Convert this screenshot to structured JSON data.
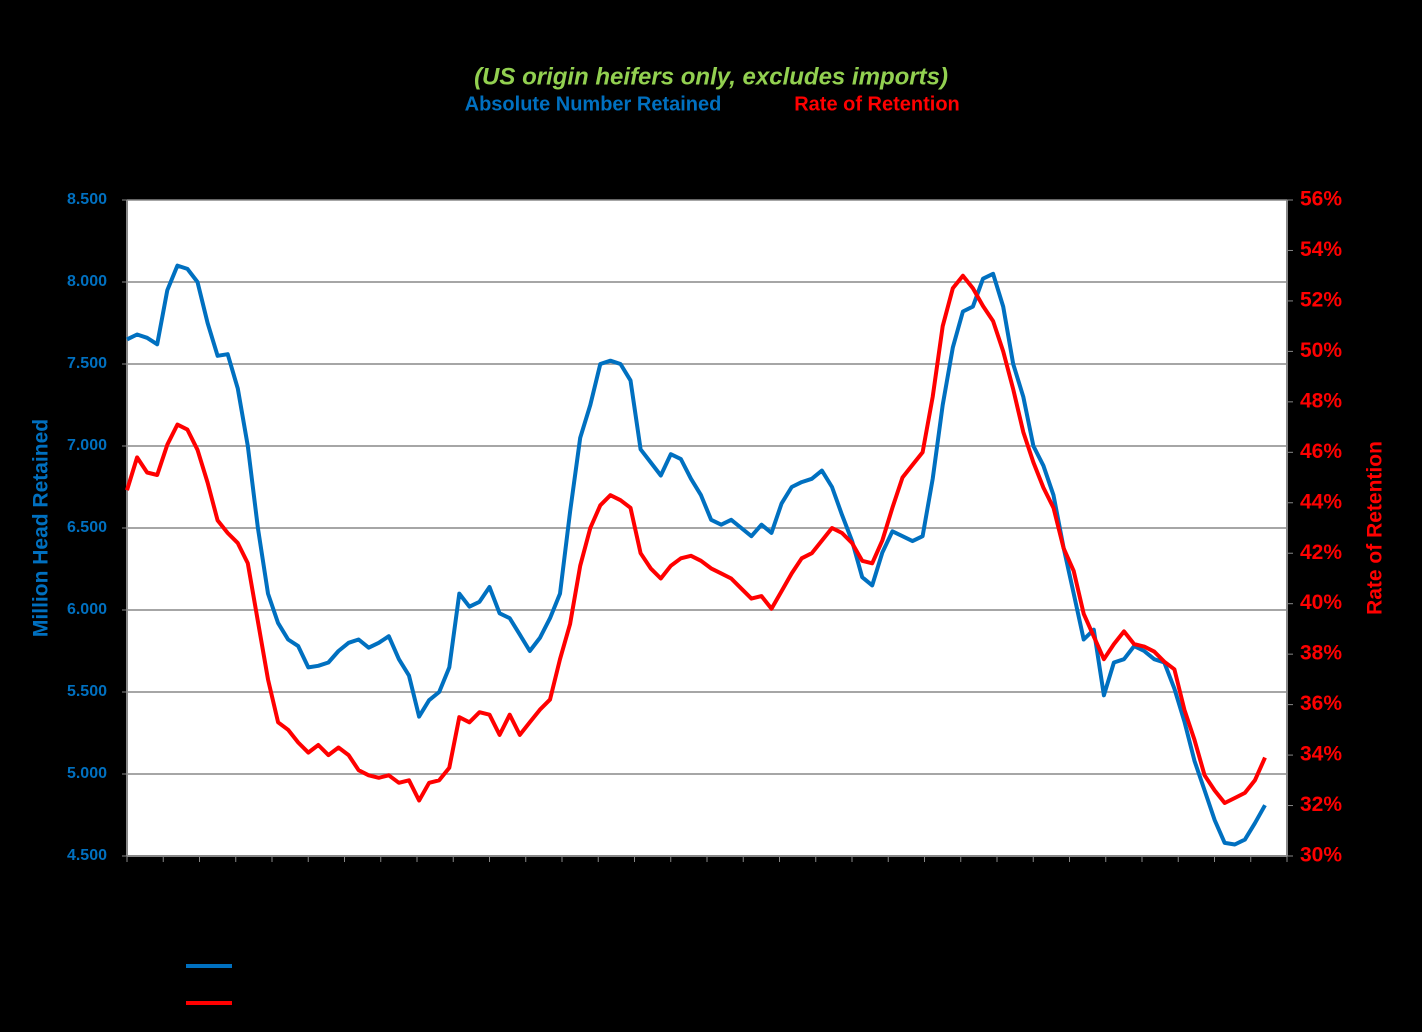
{
  "chart_data": {
    "type": "line",
    "title": "(US origin heifers only, excludes imports)",
    "ylabel": "Million Head Retained",
    "y2label": "Rate of Retention",
    "categories": [
      null,
      null,
      null,
      null,
      null,
      null,
      null,
      null,
      null,
      null,
      null,
      null,
      null,
      null,
      null,
      null,
      null,
      null,
      null,
      null,
      null,
      null,
      null,
      null,
      null,
      null,
      null,
      null,
      null,
      null,
      null,
      null,
      null,
      null,
      null,
      null,
      null,
      null,
      null,
      null,
      null,
      null,
      null,
      null,
      null,
      null,
      null,
      null,
      null,
      null,
      null,
      null,
      null,
      null,
      null,
      null,
      null,
      null,
      null,
      null,
      null,
      null,
      null,
      null,
      null,
      null,
      null,
      null,
      null,
      null,
      null,
      null,
      null,
      null,
      null,
      null,
      null,
      null,
      null,
      null,
      null,
      null,
      null,
      null,
      null,
      null,
      null,
      null,
      null,
      null,
      null,
      null,
      null,
      null,
      null,
      null,
      null,
      null,
      null,
      null,
      null,
      null,
      null,
      null,
      null,
      null,
      null,
      null,
      null,
      null,
      null,
      null,
      null,
      null
    ],
    "series": [
      {
        "name": "Absolute Number Retained",
        "color": "#0070c0",
        "axis": "y",
        "values": [
          7.65,
          7.68,
          7.66,
          7.62,
          7.95,
          8.1,
          8.08,
          8.0,
          7.75,
          7.55,
          7.56,
          7.35,
          7.0,
          6.5,
          6.1,
          5.92,
          5.82,
          5.78,
          5.65,
          5.66,
          5.68,
          5.75,
          5.8,
          5.82,
          5.77,
          5.8,
          5.84,
          5.7,
          5.6,
          5.35,
          5.45,
          5.5,
          5.65,
          6.1,
          6.02,
          6.05,
          6.14,
          5.98,
          5.95,
          5.85,
          5.75,
          5.83,
          5.95,
          6.1,
          6.6,
          7.05,
          7.25,
          7.5,
          7.52,
          7.5,
          7.4,
          6.98,
          6.9,
          6.82,
          6.95,
          6.92,
          6.8,
          6.7,
          6.55,
          6.52,
          6.55,
          6.5,
          6.45,
          6.52,
          6.47,
          6.65,
          6.75,
          6.78,
          6.8,
          6.85,
          6.75,
          6.58,
          6.42,
          6.2,
          6.15,
          6.35,
          6.48,
          6.45,
          6.42,
          6.45,
          6.8,
          7.25,
          7.6,
          7.82,
          7.85,
          8.02,
          8.05,
          7.85,
          7.5,
          7.3,
          7.0,
          6.88,
          6.7,
          6.38,
          6.1,
          5.82,
          5.88,
          5.48,
          5.68,
          5.7,
          5.78,
          5.75,
          5.7,
          5.68,
          5.52,
          5.32,
          5.08,
          4.9,
          4.72,
          4.58,
          4.57,
          4.6,
          4.7,
          4.81
        ]
      },
      {
        "name": "Rate of Retention",
        "color": "#ff0000",
        "axis": "y2",
        "values": [
          44.5,
          45.8,
          45.2,
          45.1,
          46.3,
          47.1,
          46.9,
          46.1,
          44.8,
          43.3,
          42.8,
          42.4,
          41.6,
          39.3,
          37.0,
          35.3,
          35.0,
          34.5,
          34.1,
          34.4,
          34.0,
          34.3,
          34.0,
          33.4,
          33.2,
          33.1,
          33.2,
          32.9,
          33.0,
          32.2,
          32.9,
          33.0,
          33.5,
          35.5,
          35.3,
          35.7,
          35.6,
          34.8,
          35.6,
          34.8,
          35.3,
          35.8,
          36.2,
          37.8,
          39.2,
          41.5,
          43.0,
          43.9,
          44.3,
          44.1,
          43.8,
          42.0,
          41.4,
          41.0,
          41.5,
          41.8,
          41.9,
          41.7,
          41.4,
          41.2,
          41.0,
          40.6,
          40.2,
          40.3,
          39.8,
          40.5,
          41.2,
          41.8,
          42.0,
          42.5,
          43.0,
          42.8,
          42.4,
          41.7,
          41.6,
          42.5,
          43.8,
          45.0,
          45.5,
          46.0,
          48.2,
          51.0,
          52.5,
          53.0,
          52.5,
          51.8,
          51.2,
          50.0,
          48.5,
          46.8,
          45.6,
          44.6,
          43.8,
          42.2,
          41.3,
          39.6,
          38.7,
          37.8,
          38.4,
          38.9,
          38.4,
          38.3,
          38.1,
          37.7,
          37.4,
          35.8,
          34.6,
          33.2,
          32.6,
          32.1,
          32.3,
          32.5,
          33.0,
          33.9
        ]
      }
    ],
    "ylim": [
      4.5,
      8.5
    ],
    "yticks": [
      {
        "value": 4.5,
        "label": "4.500"
      },
      {
        "value": 5,
        "label": "5.000"
      },
      {
        "value": 5.5,
        "label": "5.500"
      },
      {
        "value": 6,
        "label": "6.000"
      },
      {
        "value": 6.5,
        "label": "6.500"
      },
      {
        "value": 7,
        "label": "7.000"
      },
      {
        "value": 7.5,
        "label": "7.500"
      },
      {
        "value": 8,
        "label": "8.000"
      },
      {
        "value": 8.5,
        "label": "8.500"
      }
    ],
    "y2lim": [
      30,
      56
    ],
    "y2ticks": [
      {
        "value": 30,
        "label": "30%"
      },
      {
        "value": 32,
        "label": "32%"
      },
      {
        "value": 34,
        "label": "34%"
      },
      {
        "value": 36,
        "label": "36%"
      },
      {
        "value": 38,
        "label": "38%"
      },
      {
        "value": 40,
        "label": "40%"
      },
      {
        "value": 42,
        "label": "42%"
      },
      {
        "value": 44,
        "label": "44%"
      },
      {
        "value": 46,
        "label": "46%"
      },
      {
        "value": 48,
        "label": "48%"
      },
      {
        "value": 50,
        "label": "50%"
      },
      {
        "value": 52,
        "label": "52%"
      },
      {
        "value": 54,
        "label": "54%"
      },
      {
        "value": 56,
        "label": "56%"
      }
    ],
    "grid": true
  }
}
